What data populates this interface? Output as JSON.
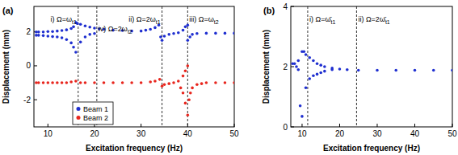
{
  "chart_data": [
    {
      "type": "scatter",
      "title": "(a)",
      "x_label": "Excitation frequency (Hz)",
      "y_label": "Displacement (mm)",
      "xlim": [
        7,
        50
      ],
      "xticks": [
        10,
        20,
        30,
        40,
        50
      ],
      "ylim": [
        -3.6,
        3.5
      ],
      "yticks": [
        -2,
        0,
        2
      ],
      "legend": "lower left",
      "annotations": [
        {
          "text": "i) Ω=ω",
          "sub": "t1",
          "x": 16.5
        },
        {
          "text": "ii) Ω=2ω",
          "sub": "t1",
          "x": 34.5
        },
        {
          "text": "iii) Ω=ω",
          "sub": "t2",
          "x": 40
        },
        {
          "text": "iv) Ω=2ω",
          "sub": "t2",
          "x": 20.5
        }
      ],
      "series": [
        {
          "name": "Beam 1",
          "color": "#1f2fd0",
          "marker": "circle",
          "x": [
            7.5,
            7.5,
            8,
            8,
            9,
            9,
            10,
            10,
            11,
            11,
            12,
            12,
            13,
            13,
            14,
            14,
            15,
            15,
            15.5,
            15.5,
            16,
            16,
            16.3,
            17,
            17,
            18,
            18,
            19,
            19,
            20,
            20,
            21,
            22,
            24,
            26,
            28,
            30,
            31,
            32,
            33,
            33.8,
            34.2,
            34.5,
            35,
            36,
            37,
            38,
            39,
            39.5,
            40,
            40,
            40.5,
            41,
            42,
            44,
            46,
            48,
            50
          ],
          "values": [
            2.0,
            1.8,
            2.0,
            1.8,
            2.0,
            1.78,
            2.02,
            1.75,
            2.02,
            1.72,
            2.05,
            1.7,
            2.08,
            1.65,
            2.12,
            1.55,
            2.2,
            1.35,
            2.3,
            1.1,
            2.55,
            0.8,
            2.5,
            2.45,
            1.4,
            2.35,
            1.7,
            2.28,
            1.85,
            2.22,
            1.9,
            2.18,
            2.15,
            2.1,
            2.08,
            2.05,
            2.05,
            2.1,
            2.15,
            2.25,
            2.4,
            1.7,
            1.5,
            1.75,
            1.85,
            1.9,
            1.95,
            2.1,
            2.3,
            2.4,
            1.5,
            1.7,
            1.85,
            1.9,
            1.92,
            1.92,
            1.92,
            1.92
          ]
        },
        {
          "name": "Beam 2",
          "color": "#e8261e",
          "marker": "circle",
          "x": [
            7.5,
            8,
            9,
            10,
            11,
            12,
            13,
            14,
            15,
            16,
            17,
            18,
            20,
            22,
            24,
            26,
            28,
            30,
            32,
            33,
            34,
            34.5,
            35,
            36,
            37,
            38,
            38.5,
            39,
            39,
            39.5,
            39.5,
            40,
            40,
            40.3,
            40.6,
            41,
            42,
            43,
            44,
            46,
            48,
            50
          ],
          "values": [
            -1.0,
            -1.0,
            -1.0,
            -1.0,
            -1.0,
            -1.0,
            -1.0,
            -1.0,
            -0.95,
            -0.9,
            -1.0,
            -1.0,
            -1.0,
            -1.0,
            -1.0,
            -1.0,
            -1.0,
            -1.0,
            -0.95,
            -0.9,
            -0.8,
            -1.2,
            -1.1,
            -1.05,
            -1.0,
            -0.9,
            -1.3,
            -0.6,
            -1.6,
            -0.3,
            -2.2,
            0.0,
            -2.9,
            -2.0,
            -1.6,
            -1.3,
            -1.1,
            -1.05,
            -1.0,
            -1.0,
            -1.0,
            -1.0
          ]
        }
      ]
    },
    {
      "type": "scatter",
      "title": "(b)",
      "x_label": "Excitation frequency (Hz)",
      "y_label": "Displacement (mm)",
      "xlim": [
        7,
        50
      ],
      "xticks": [
        10,
        20,
        30,
        40,
        50
      ],
      "ylim": [
        0,
        4
      ],
      "yticks": [
        0,
        2,
        4
      ],
      "annotations": [
        {
          "text": "i) Ω=ω̄",
          "sub": "t1",
          "x": 11.5
        },
        {
          "text": "ii) Ω=2ω̄",
          "sub": "t1",
          "x": 24.5
        }
      ],
      "series": [
        {
          "color": "#1f2fd0",
          "marker": "circle",
          "x": [
            7.5,
            8,
            8.5,
            9,
            9,
            9.5,
            10,
            10,
            10.5,
            11,
            11,
            12,
            12,
            13,
            13,
            14,
            14,
            15,
            15,
            16,
            16,
            18,
            18,
            20,
            22,
            25,
            30,
            35,
            40,
            45,
            50
          ],
          "values": [
            2.1,
            2.1,
            2.0,
            1.9,
            2.2,
            0.7,
            0.35,
            2.5,
            2.5,
            1.3,
            2.4,
            1.6,
            2.3,
            1.7,
            2.2,
            1.75,
            2.1,
            1.8,
            2.05,
            1.85,
            2.0,
            1.9,
            1.95,
            1.92,
            1.9,
            1.88,
            1.88,
            1.88,
            1.88,
            1.88,
            1.88
          ]
        }
      ]
    }
  ]
}
